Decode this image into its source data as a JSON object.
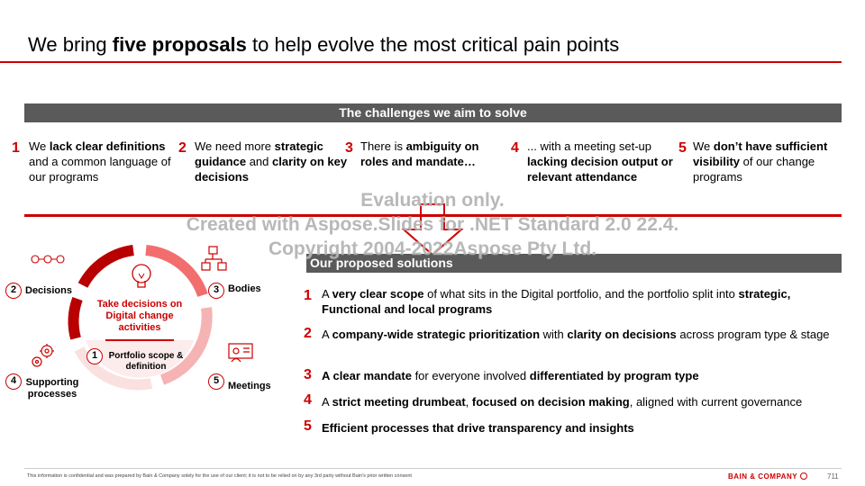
{
  "header": {
    "title_pre": "We bring ",
    "title_bold": "five proposals",
    "title_post": " to help evolve the most critical pain points"
  },
  "challenges": {
    "heading": "The challenges we aim to solve",
    "items": [
      {
        "num": "1",
        "parts": [
          "We ",
          "lack clear definitions",
          " and a common language of our programs"
        ]
      },
      {
        "num": "2",
        "parts": [
          "We need more ",
          "strategic guidance",
          " and ",
          "clarity on key decisions"
        ]
      },
      {
        "num": "3",
        "parts": [
          "There is ",
          "ambiguity on roles and mandate…"
        ]
      },
      {
        "num": "4",
        "parts": [
          "... with a meeting set-up ",
          "lacking decision output or relevant attendance"
        ]
      },
      {
        "num": "5",
        "parts": [
          "We ",
          "don’t have sufficient visibility",
          " of our change programs"
        ]
      }
    ]
  },
  "watermark": {
    "line1": "Evaluation only.",
    "line2": "Created with Aspose.Slides for .NET Standard 2.0 22.4.",
    "line3": "Copyright 2004-2022Aspose Pty Ltd."
  },
  "cycle": {
    "center_title": "Take decisions on Digital change activities",
    "items": [
      {
        "num": "1",
        "label": "Portfolio scope & definition"
      },
      {
        "num": "2",
        "label": "Decisions"
      },
      {
        "num": "3",
        "label": "Bodies"
      },
      {
        "num": "4",
        "label": "Supporting processes"
      },
      {
        "num": "5",
        "label": "Meetings"
      }
    ]
  },
  "solutions": {
    "heading": "Our proposed solutions",
    "items": [
      {
        "num": "1",
        "parts": [
          "A ",
          "very clear scope",
          " of what sits in the Digital portfolio, and the portfolio split into ",
          "strategic, Functional and local programs"
        ]
      },
      {
        "num": "2",
        "parts": [
          "A ",
          "company-wide strategic prioritization",
          " with ",
          "clarity on decisions",
          " across program type & stage"
        ]
      },
      {
        "num": "3",
        "parts": [
          "",
          "A clear mandate",
          " for everyone involved ",
          "differentiated by program type"
        ]
      },
      {
        "num": "4",
        "parts": [
          "A ",
          "strict meeting drumbeat",
          ", ",
          "focused on decision making",
          ", aligned with current governance"
        ]
      },
      {
        "num": "5",
        "parts": [
          "",
          "Efficient processes that drive transparency and insights"
        ]
      }
    ]
  },
  "footer": {
    "disclaimer": "This information is confidential and was prepared by Bain & Company solely for the use of our client; it is not to be relied on by any 3rd party without Bain's prior written consent",
    "brand": "BAIN & COMPANY",
    "page": "711"
  },
  "colors": {
    "accent": "#cc0000",
    "bar": "#5a5a5a",
    "ring_light": "#f7c6c6",
    "ring_mid": "#f28b8b"
  }
}
